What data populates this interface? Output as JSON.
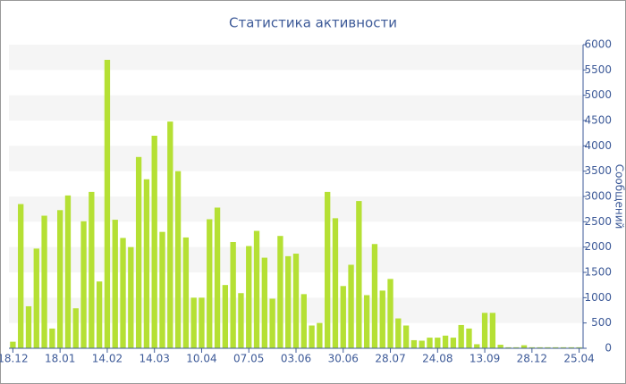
{
  "chart_data": {
    "type": "bar",
    "title": "Статистика активности",
    "y_axis_label": "Сообщений",
    "categories": [
      "18.12",
      null,
      null,
      null,
      null,
      null,
      "18.01",
      null,
      null,
      null,
      null,
      null,
      "14.02",
      null,
      null,
      null,
      null,
      null,
      "14.03",
      null,
      null,
      null,
      null,
      null,
      "10.04",
      null,
      null,
      null,
      null,
      null,
      "07.05",
      null,
      null,
      null,
      null,
      null,
      "03.06",
      null,
      null,
      null,
      null,
      null,
      "30.06",
      null,
      null,
      null,
      null,
      null,
      "28.07",
      null,
      null,
      null,
      null,
      null,
      "24.08",
      null,
      null,
      null,
      null,
      null,
      "13.09",
      null,
      null,
      null,
      null,
      null,
      "28.12",
      null,
      null,
      null,
      null,
      null,
      "25.04"
    ],
    "values": [
      130,
      2850,
      830,
      1970,
      2620,
      390,
      2730,
      3020,
      790,
      2510,
      3090,
      1320,
      5700,
      2540,
      2180,
      2000,
      3780,
      3340,
      4200,
      2300,
      4480,
      3500,
      2190,
      1000,
      1000,
      2550,
      2780,
      1250,
      2100,
      1090,
      2020,
      2320,
      1790,
      980,
      2220,
      1820,
      1870,
      1070,
      450,
      500,
      3090,
      2570,
      1230,
      1650,
      2910,
      1050,
      2060,
      1140,
      1370,
      590,
      450,
      160,
      150,
      210,
      210,
      250,
      210,
      460,
      390,
      80,
      700,
      700,
      70,
      20,
      20,
      60,
      20,
      20,
      20,
      20,
      20,
      20,
      20
    ],
    "color": "#b5e034",
    "ylim": [
      0,
      6000
    ],
    "yticks": [
      0,
      500,
      1000,
      1500,
      2000,
      2500,
      3000,
      3500,
      4000,
      4500,
      5000,
      5500,
      6000
    ],
    "grid": true
  }
}
